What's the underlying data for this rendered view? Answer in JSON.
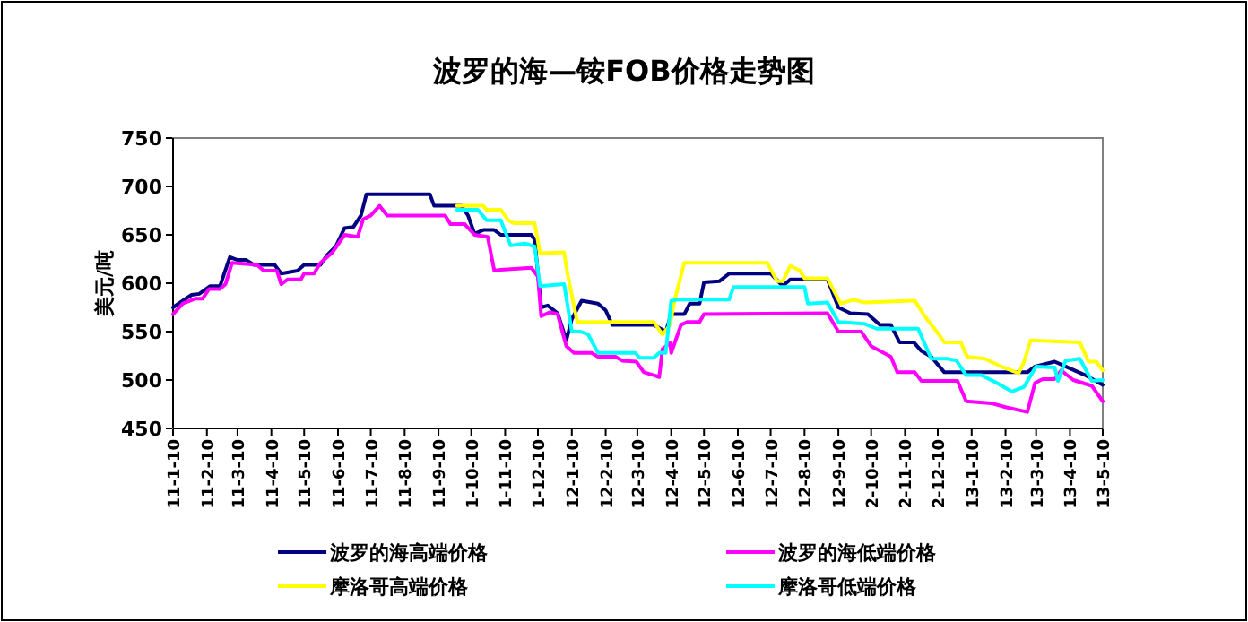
{
  "chart_data": {
    "type": "line",
    "title": "波罗的海—铵FOB价格走势图",
    "ylabel": "美元/吨",
    "xlim": [
      "2011-01-10",
      "2013-05-10"
    ],
    "ylim": [
      450,
      750
    ],
    "yticks": [
      450,
      500,
      550,
      600,
      650,
      700,
      750
    ],
    "xticks": [
      {
        "value": "2011-01-10",
        "label": "11-1-10"
      },
      {
        "value": "2011-02-10",
        "label": "11-2-10"
      },
      {
        "value": "2011-03-10",
        "label": "11-3-10"
      },
      {
        "value": "2011-04-10",
        "label": "11-4-10"
      },
      {
        "value": "2011-05-10",
        "label": "11-5-10"
      },
      {
        "value": "2011-06-10",
        "label": "11-6-10"
      },
      {
        "value": "2011-07-10",
        "label": "11-7-10"
      },
      {
        "value": "2011-08-10",
        "label": "11-8-10"
      },
      {
        "value": "2011-09-10",
        "label": "11-9-10"
      },
      {
        "value": "2011-10-10",
        "label": "1-10-10"
      },
      {
        "value": "2011-11-10",
        "label": "1-11-10"
      },
      {
        "value": "2011-12-10",
        "label": "1-12-10"
      },
      {
        "value": "2012-01-10",
        "label": "12-1-10"
      },
      {
        "value": "2012-02-10",
        "label": "12-2-10"
      },
      {
        "value": "2012-03-10",
        "label": "12-3-10"
      },
      {
        "value": "2012-04-10",
        "label": "12-4-10"
      },
      {
        "value": "2012-05-10",
        "label": "12-5-10"
      },
      {
        "value": "2012-06-10",
        "label": "12-6-10"
      },
      {
        "value": "2012-07-10",
        "label": "12-7-10"
      },
      {
        "value": "2012-08-10",
        "label": "12-8-10"
      },
      {
        "value": "2012-09-10",
        "label": "12-9-10"
      },
      {
        "value": "2012-10-10",
        "label": "2-10-10"
      },
      {
        "value": "2012-11-10",
        "label": "2-11-10"
      },
      {
        "value": "2012-12-10",
        "label": "2-12-10"
      },
      {
        "value": "2013-01-10",
        "label": "13-1-10"
      },
      {
        "value": "2013-02-10",
        "label": "13-2-10"
      },
      {
        "value": "2013-03-10",
        "label": "13-3-10"
      },
      {
        "value": "2013-04-10",
        "label": "13-4-10"
      },
      {
        "value": "2013-05-10",
        "label": "13-5-10"
      }
    ],
    "legend": "bottom",
    "series": [
      {
        "name": "波罗的海高端价格",
        "color": "#000080",
        "x": [
          "2011-01-10",
          "2011-01-19",
          "2011-01-27",
          "2011-02-03",
          "2011-02-13",
          "2011-02-22",
          "2011-02-25",
          "2011-03-03",
          "2011-03-10",
          "2011-03-18",
          "2011-03-25",
          "2011-04-13",
          "2011-04-19",
          "2011-05-04",
          "2011-05-10",
          "2011-05-25",
          "2011-05-31",
          "2011-06-08",
          "2011-06-16",
          "2011-06-24",
          "2011-07-01",
          "2011-07-06",
          "2011-09-02",
          "2011-09-06",
          "2011-10-01",
          "2011-10-07",
          "2011-10-13",
          "2011-10-21",
          "2011-10-31",
          "2011-11-06",
          "2011-12-04",
          "2011-12-07",
          "2011-12-13",
          "2011-12-19",
          "2011-12-28",
          "2012-01-05",
          "2012-01-10",
          "2012-01-19",
          "2012-02-03",
          "2012-02-10",
          "2012-02-16",
          "2012-03-25",
          "2012-04-05",
          "2012-04-10",
          "2012-04-22",
          "2012-04-27",
          "2012-05-06",
          "2012-05-10",
          "2012-05-24",
          "2012-06-02",
          "2012-07-10",
          "2012-07-21",
          "2012-07-28",
          "2012-08-31",
          "2012-09-10",
          "2012-09-21",
          "2012-10-07",
          "2012-10-18",
          "2012-10-28",
          "2012-11-05",
          "2012-11-18",
          "2012-11-25",
          "2012-12-04",
          "2012-12-16",
          "2013-03-02",
          "2013-03-09",
          "2013-03-27",
          "2013-04-06",
          "2013-04-24",
          "2013-05-10"
        ],
        "values": [
          575,
          582,
          588,
          589,
          597,
          597,
          607,
          627,
          624,
          624,
          619,
          619,
          610,
          613,
          619,
          619,
          629,
          638,
          657,
          658,
          670,
          692,
          692,
          680,
          680,
          670,
          651,
          655,
          655,
          650,
          650,
          645,
          575,
          577,
          569,
          541,
          563,
          582,
          579,
          572,
          557,
          557,
          550,
          568,
          568,
          579,
          579,
          601,
          602,
          610,
          610,
          597,
          604,
          604,
          575,
          569,
          568,
          557,
          557,
          539,
          539,
          530,
          524,
          508,
          508,
          514,
          519,
          514,
          505,
          495
        ]
      },
      {
        "name": "波罗的海低端价格",
        "color": "#ff00ff",
        "x": [
          "2011-01-10",
          "2011-01-19",
          "2011-01-30",
          "2011-02-06",
          "2011-02-12",
          "2011-02-22",
          "2011-02-27",
          "2011-03-05",
          "2011-03-28",
          "2011-04-03",
          "2011-04-15",
          "2011-04-19",
          "2011-04-25",
          "2011-05-07",
          "2011-05-10",
          "2011-05-19",
          "2011-05-25",
          "2011-06-05",
          "2011-06-16",
          "2011-06-28",
          "2011-07-03",
          "2011-07-10",
          "2011-07-18",
          "2011-07-25",
          "2011-09-16",
          "2011-09-21",
          "2011-10-04",
          "2011-10-13",
          "2011-10-25",
          "2011-10-31",
          "2011-11-06",
          "2011-12-04",
          "2011-12-10",
          "2011-12-13",
          "2011-12-21",
          "2011-12-28",
          "2012-01-05",
          "2012-01-12",
          "2012-01-28",
          "2012-02-03",
          "2012-02-19",
          "2012-02-25",
          "2012-03-09",
          "2012-03-16",
          "2012-03-25",
          "2012-03-30",
          "2012-04-02",
          "2012-04-09",
          "2012-04-10",
          "2012-04-19",
          "2012-04-25",
          "2012-05-06",
          "2012-05-10",
          "2012-08-31",
          "2012-09-10",
          "2012-09-16",
          "2012-10-01",
          "2012-10-10",
          "2012-10-28",
          "2012-11-03",
          "2012-11-19",
          "2012-11-25",
          "2012-12-28",
          "2013-01-05",
          "2013-01-28",
          "2013-02-10",
          "2013-03-02",
          "2013-03-09",
          "2013-03-16",
          "2013-03-27",
          "2013-04-02",
          "2013-04-13",
          "2013-04-30",
          "2013-05-10"
        ],
        "values": [
          568,
          579,
          584,
          584,
          594,
          594,
          599,
          621,
          619,
          613,
          613,
          599,
          604,
          604,
          610,
          610,
          621,
          632,
          650,
          648,
          666,
          670,
          680,
          670,
          670,
          661,
          661,
          650,
          648,
          613,
          614,
          616,
          607,
          566,
          570,
          568,
          535,
          528,
          528,
          524,
          524,
          520,
          519,
          508,
          505,
          503,
          532,
          538,
          528,
          557,
          560,
          560,
          568,
          569,
          550,
          550,
          550,
          535,
          524,
          508,
          508,
          499,
          499,
          478,
          476,
          472,
          467,
          497,
          501,
          501,
          510,
          500,
          494,
          478
        ]
      },
      {
        "name": "摩洛哥高端价格",
        "color": "#ffff00",
        "x": [
          "2011-09-27",
          "2011-10-21",
          "2011-10-24",
          "2011-11-06",
          "2011-11-13",
          "2011-11-18",
          "2011-12-07",
          "2011-12-12",
          "2012-01-03",
          "2012-01-06",
          "2012-01-15",
          "2012-03-25",
          "2012-04-02",
          "2012-04-09",
          "2012-04-13",
          "2012-04-22",
          "2012-07-07",
          "2012-07-16",
          "2012-07-21",
          "2012-07-28",
          "2012-08-06",
          "2012-08-10",
          "2012-08-31",
          "2012-09-12",
          "2012-09-24",
          "2012-10-04",
          "2012-11-19",
          "2012-11-28",
          "2012-12-09",
          "2012-12-16",
          "2012-12-31",
          "2013-01-06",
          "2013-01-22",
          "2013-02-08",
          "2013-02-22",
          "2013-02-27",
          "2013-03-05",
          "2013-04-19",
          "2013-04-27",
          "2013-05-04",
          "2013-05-10"
        ],
        "values": [
          680,
          680,
          676,
          676,
          665,
          662,
          662,
          631,
          632,
          610,
          560,
          560,
          547,
          557,
          582,
          621,
          621,
          602,
          602,
          618,
          613,
          605,
          605,
          579,
          583,
          580,
          582,
          566,
          550,
          539,
          539,
          524,
          522,
          513,
          507,
          519,
          541,
          539,
          519,
          519,
          510
        ]
      },
      {
        "name": "摩洛哥低端价格",
        "color": "#00ffff",
        "x": [
          "2011-09-27",
          "2011-10-16",
          "2011-10-24",
          "2011-11-06",
          "2011-11-15",
          "2011-11-28",
          "2011-12-07",
          "2011-12-12",
          "2012-01-03",
          "2012-01-10",
          "2012-01-18",
          "2012-01-25",
          "2012-02-03",
          "2012-03-08",
          "2012-03-12",
          "2012-03-25",
          "2012-03-30",
          "2012-04-05",
          "2012-04-10",
          "2012-04-16",
          "2012-06-02",
          "2012-06-06",
          "2012-08-10",
          "2012-08-13",
          "2012-08-31",
          "2012-09-10",
          "2012-10-04",
          "2012-10-15",
          "2012-11-22",
          "2012-12-04",
          "2012-12-19",
          "2012-12-27",
          "2013-01-05",
          "2013-01-19",
          "2013-02-02",
          "2013-02-16",
          "2013-02-27",
          "2013-03-10",
          "2013-03-27",
          "2013-03-30",
          "2013-04-06",
          "2013-04-19",
          "2013-04-30",
          "2013-05-10"
        ],
        "values": [
          676,
          676,
          665,
          665,
          639,
          641,
          638,
          597,
          599,
          550,
          550,
          547,
          528,
          528,
          523,
          523,
          528,
          528,
          582,
          583,
          583,
          596,
          596,
          579,
          580,
          560,
          558,
          553,
          553,
          522,
          522,
          520,
          505,
          505,
          497,
          488,
          493,
          514,
          513,
          499,
          520,
          522,
          499,
          500
        ]
      }
    ]
  }
}
